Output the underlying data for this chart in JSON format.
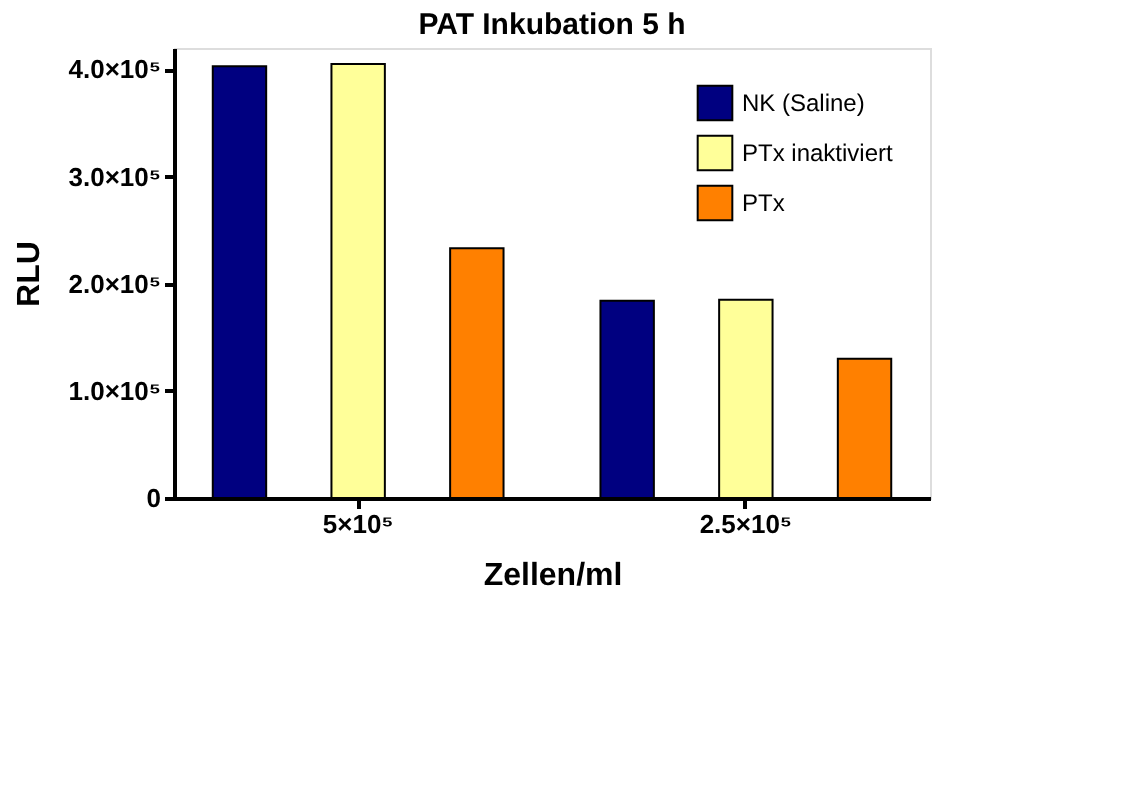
{
  "chart_data": {
    "type": "bar",
    "title": "PAT Inkubation 5 h",
    "xlabel": "Zellen/ml",
    "ylabel": "RLU",
    "categories": [
      "5×10⁵",
      "2.5×10⁵"
    ],
    "series": [
      {
        "name": "NK (Saline)",
        "color": "#000080",
        "values": [
          403000,
          184000
        ]
      },
      {
        "name": "PTx inaktiviert",
        "color": "#ffff99",
        "values": [
          405000,
          185000
        ]
      },
      {
        "name": "PTx",
        "color": "#ff8000",
        "values": [
          233000,
          130000
        ]
      }
    ],
    "ylim": [
      0,
      420000
    ],
    "yticks": [
      0,
      {
        "value": 100000,
        "label": "1.0×10⁵"
      },
      {
        "value": 200000,
        "label": "2.0×10⁵"
      },
      {
        "value": 300000,
        "label": "3.0×10⁵"
      },
      {
        "value": 400000,
        "label": "4.0×10⁵"
      }
    ],
    "grid": false,
    "legend": "top right"
  }
}
